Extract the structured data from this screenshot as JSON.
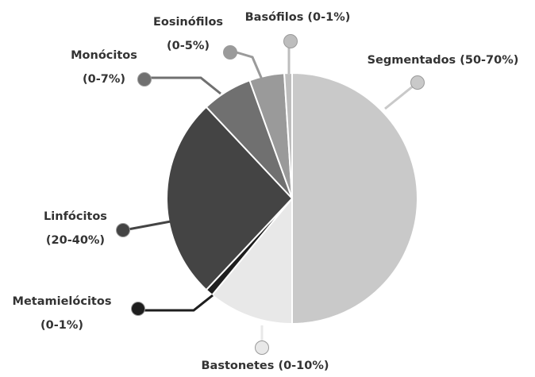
{
  "chart_data": {
    "type": "pie",
    "title": "",
    "slices": [
      {
        "label_lines": [
          "Segmentados (50-70%)"
        ],
        "value": 50,
        "color": "#c9c9c9"
      },
      {
        "label_lines": [
          "Bastonetes (0-10%)"
        ],
        "value": 11,
        "color": "#e8e8e8"
      },
      {
        "label_lines": [
          "Metamielócitos",
          "(0-1%)"
        ],
        "value": 1,
        "color": "#1e1e1e"
      },
      {
        "label_lines": [
          "Linfócitos",
          "(20-40%)"
        ],
        "value": 26,
        "color": "#444444"
      },
      {
        "label_lines": [
          "Monócitos",
          "(0-7%)"
        ],
        "value": 6.5,
        "color": "#707070"
      },
      {
        "label_lines": [
          "Eosinófilos",
          "(0-5%)"
        ],
        "value": 4.5,
        "color": "#9a9a9a"
      },
      {
        "label_lines": [
          "Basófilos (0-1%)"
        ],
        "value": 1,
        "color": "#bdbdbd"
      }
    ]
  }
}
